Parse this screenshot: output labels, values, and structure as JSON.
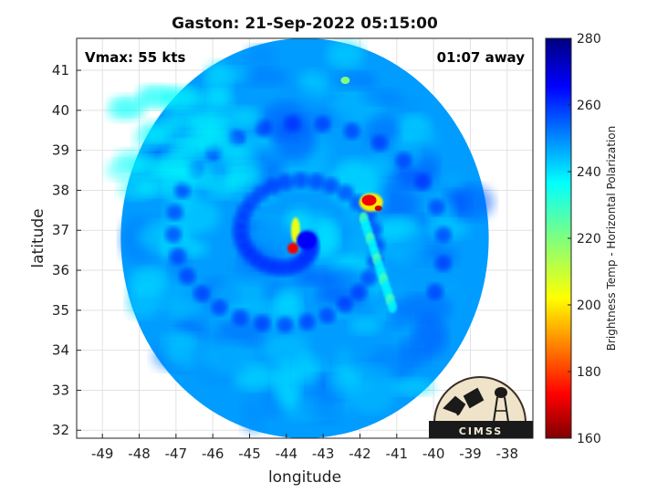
{
  "chart_data": {
    "type": "heatmap",
    "title": "Gaston: 21-Sep-2022 05:15:00",
    "xlabel": "longitude",
    "ylabel": "latitude",
    "xlim": [
      -49.7,
      -37.3
    ],
    "ylim": [
      31.8,
      41.8
    ],
    "xticks": [
      -49,
      -48,
      -47,
      -46,
      -45,
      -44,
      -43,
      -42,
      -41,
      -40,
      -39,
      -38
    ],
    "yticks": [
      32,
      33,
      34,
      35,
      36,
      37,
      38,
      39,
      40,
      41
    ],
    "grid": true,
    "annotations": {
      "left": "Vmax: 55 kts",
      "right": "01:07 away"
    },
    "colorbar": {
      "label": "Brightness Temp - Horizontal Polarization",
      "ticks": [
        160,
        180,
        200,
        220,
        240,
        260,
        280
      ],
      "range": [
        160,
        280
      ],
      "colormap": "jet"
    },
    "footprint": {
      "center": [
        -43.5,
        36.8
      ],
      "radius_deg": 5.0
    },
    "background_temp": 248,
    "features": [
      {
        "name": "Gaston eye (cold ring)",
        "lon": -43.85,
        "lat": 36.8,
        "value": 172
      },
      {
        "name": "Gaston eyewall west band",
        "lon": -43.75,
        "lat": 37.05,
        "value": 200
      },
      {
        "name": "convective cell NE",
        "lon": -41.7,
        "lat": 37.7,
        "value": 172
      },
      {
        "name": "rainband south",
        "lon": -41.2,
        "lat": 35.6,
        "value": 236
      },
      {
        "name": "small cell north",
        "lon": -42.4,
        "lat": 40.8,
        "value": 220
      }
    ],
    "logo": "CIMSS"
  }
}
